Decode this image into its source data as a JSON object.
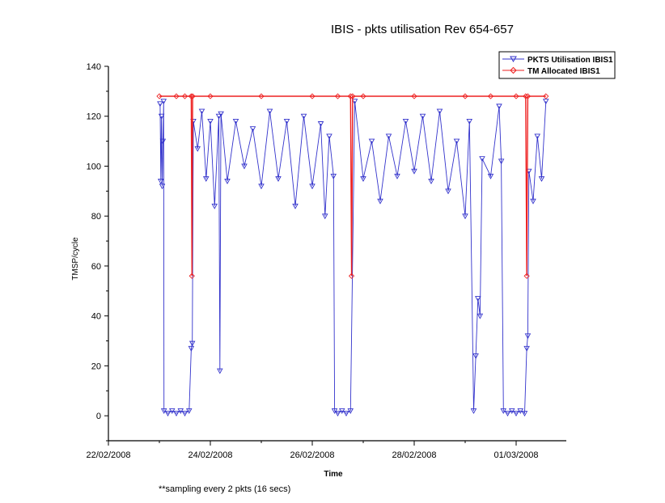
{
  "chart_data": {
    "type": "line",
    "title": "IBIS - pkts utilisation Rev 654-657",
    "xlabel": "Time",
    "ylabel": "TMSP/cycle",
    "ylim": [
      -10,
      140
    ],
    "xlim": [
      "22/02/2008",
      "01/03/2008 18:00"
    ],
    "yticks": [
      0,
      20,
      40,
      60,
      80,
      100,
      120,
      140
    ],
    "xticks": [
      "22/02/2008",
      "24/02/2008",
      "26/02/2008",
      "28/02/2008",
      "01/03/2008"
    ],
    "grid": false,
    "legend_position": "top-right",
    "series": [
      {
        "name": "PKTS Utilisation IBIS1",
        "color": "#3333cc",
        "marker": "triangle-down",
        "points": [
          [
            "2008-02-23 00:20",
            125
          ],
          [
            "2008-02-23 00:40",
            94
          ],
          [
            "2008-02-23 01:00",
            120
          ],
          [
            "2008-02-23 01:20",
            92
          ],
          [
            "2008-02-23 01:40",
            110
          ],
          [
            "2008-02-23 02:00",
            126
          ],
          [
            "2008-02-23 02:10",
            2
          ],
          [
            "2008-02-23 04:00",
            1
          ],
          [
            "2008-02-23 06:00",
            2
          ],
          [
            "2008-02-23 08:00",
            1
          ],
          [
            "2008-02-23 10:00",
            2
          ],
          [
            "2008-02-23 12:00",
            1
          ],
          [
            "2008-02-23 14:00",
            2
          ],
          [
            "2008-02-23 15:00",
            27
          ],
          [
            "2008-02-23 15:30",
            29
          ],
          [
            "2008-02-23 16:00",
            118
          ],
          [
            "2008-02-23 18:00",
            107
          ],
          [
            "2008-02-23 20:00",
            122
          ],
          [
            "2008-02-23 22:00",
            95
          ],
          [
            "2008-02-24 00:00",
            118
          ],
          [
            "2008-02-24 02:00",
            84
          ],
          [
            "2008-02-24 04:00",
            120
          ],
          [
            "2008-02-24 04:30",
            18
          ],
          [
            "2008-02-24 05:00",
            121
          ],
          [
            "2008-02-24 08:00",
            94
          ],
          [
            "2008-02-24 12:00",
            118
          ],
          [
            "2008-02-24 16:00",
            100
          ],
          [
            "2008-02-24 20:00",
            115
          ],
          [
            "2008-02-25 00:00",
            92
          ],
          [
            "2008-02-25 04:00",
            122
          ],
          [
            "2008-02-25 08:00",
            95
          ],
          [
            "2008-02-25 12:00",
            118
          ],
          [
            "2008-02-25 16:00",
            84
          ],
          [
            "2008-02-25 20:00",
            120
          ],
          [
            "2008-02-26 00:00",
            92
          ],
          [
            "2008-02-26 04:00",
            117
          ],
          [
            "2008-02-26 06:00",
            80
          ],
          [
            "2008-02-26 08:00",
            112
          ],
          [
            "2008-02-26 10:00",
            96
          ],
          [
            "2008-02-26 10:30",
            2
          ],
          [
            "2008-02-26 12:00",
            1
          ],
          [
            "2008-02-26 14:00",
            2
          ],
          [
            "2008-02-26 16:00",
            1
          ],
          [
            "2008-02-26 18:00",
            2
          ],
          [
            "2008-02-26 20:00",
            126
          ],
          [
            "2008-02-27 00:00",
            95
          ],
          [
            "2008-02-27 04:00",
            110
          ],
          [
            "2008-02-27 08:00",
            86
          ],
          [
            "2008-02-27 12:00",
            112
          ],
          [
            "2008-02-27 16:00",
            96
          ],
          [
            "2008-02-27 20:00",
            118
          ],
          [
            "2008-02-28 00:00",
            98
          ],
          [
            "2008-02-28 04:00",
            120
          ],
          [
            "2008-02-28 08:00",
            94
          ],
          [
            "2008-02-28 12:00",
            122
          ],
          [
            "2008-02-28 16:00",
            90
          ],
          [
            "2008-02-28 20:00",
            110
          ],
          [
            "2008-02-29 00:00",
            80
          ],
          [
            "2008-02-29 02:00",
            118
          ],
          [
            "2008-02-29 04:00",
            2
          ],
          [
            "2008-02-29 05:00",
            24
          ],
          [
            "2008-02-29 06:00",
            47
          ],
          [
            "2008-02-29 07:00",
            40
          ],
          [
            "2008-02-29 08:00",
            103
          ],
          [
            "2008-02-29 12:00",
            96
          ],
          [
            "2008-02-29 16:00",
            124
          ],
          [
            "2008-02-29 17:00",
            102
          ],
          [
            "2008-02-29 18:00",
            2
          ],
          [
            "2008-02-29 20:00",
            1
          ],
          [
            "2008-02-29 22:00",
            2
          ],
          [
            "2008-03-01 00:00",
            1
          ],
          [
            "2008-03-01 02:00",
            2
          ],
          [
            "2008-03-01 04:00",
            1
          ],
          [
            "2008-03-01 05:00",
            27
          ],
          [
            "2008-03-01 05:30",
            32
          ],
          [
            "2008-03-01 06:00",
            98
          ],
          [
            "2008-03-01 08:00",
            86
          ],
          [
            "2008-03-01 10:00",
            112
          ],
          [
            "2008-03-01 12:00",
            95
          ],
          [
            "2008-03-01 14:00",
            126
          ]
        ]
      },
      {
        "name": "TM Allocated IBIS1",
        "color": "#ee2222",
        "marker": "diamond",
        "points": [
          [
            "2008-02-23 00:00",
            128
          ],
          [
            "2008-02-23 08:00",
            128
          ],
          [
            "2008-02-23 12:00",
            128
          ],
          [
            "2008-02-23 15:00",
            128
          ],
          [
            "2008-02-23 15:20",
            56
          ],
          [
            "2008-02-23 15:40",
            128
          ],
          [
            "2008-02-24 00:00",
            128
          ],
          [
            "2008-02-25 00:00",
            128
          ],
          [
            "2008-02-26 00:00",
            128
          ],
          [
            "2008-02-26 12:00",
            128
          ],
          [
            "2008-02-26 18:00",
            128
          ],
          [
            "2008-02-26 18:30",
            56
          ],
          [
            "2008-02-26 19:00",
            128
          ],
          [
            "2008-02-27 00:00",
            128
          ],
          [
            "2008-02-28 00:00",
            128
          ],
          [
            "2008-02-29 00:00",
            128
          ],
          [
            "2008-02-29 12:00",
            128
          ],
          [
            "2008-03-01 00:00",
            128
          ],
          [
            "2008-03-01 04:30",
            128
          ],
          [
            "2008-03-01 05:00",
            56
          ],
          [
            "2008-03-01 05:30",
            128
          ],
          [
            "2008-03-01 14:00",
            128
          ]
        ]
      }
    ],
    "annotation": "**sampling every 2 pkts (16 secs)"
  },
  "colors": {
    "axis": "#000000",
    "pkts": "#3333cc",
    "tm": "#ee2222"
  }
}
